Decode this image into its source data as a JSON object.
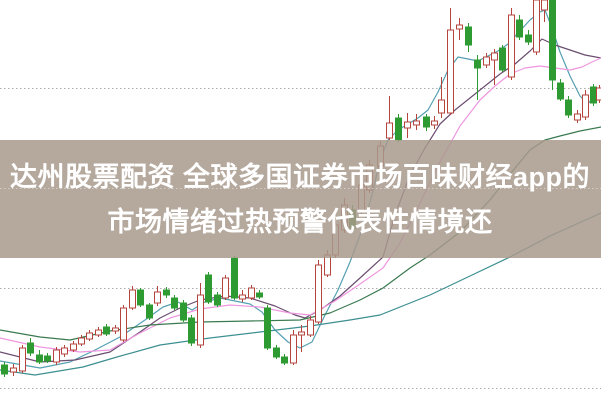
{
  "banner": {
    "line1": "达州股票配资 全球多国证券市场百味财经app的",
    "line2": "市场情绪过热预警代表性情境还",
    "bg_color": "#a8998c",
    "bg_opacity": 0.85,
    "text_color": "#ffffff"
  },
  "chart_data": {
    "type": "candlestick",
    "title": "",
    "xlabel": "",
    "ylabel": "",
    "axis_labels_visible": false,
    "y_axis_note": "no numeric axis labels visible; values recorded in screenshot pixel coordinates, smaller y = higher price",
    "background": "#ffffff",
    "grid": {
      "style": "dotted",
      "color": "#ababab",
      "y_positions": [
        88,
        188,
        288,
        388
      ]
    },
    "colors": {
      "up": "#b5443c",
      "up_fill": "#ffffff",
      "down": "#2e9b32"
    },
    "candles": [
      [
        4,
        365,
        374,
        362,
        377,
        "g"
      ],
      [
        13,
        368,
        372,
        364,
        376,
        "r"
      ],
      [
        22,
        348,
        371,
        345,
        373,
        "r"
      ],
      [
        30,
        343,
        353,
        338,
        356,
        "g"
      ],
      [
        39,
        355,
        362,
        350,
        364,
        "g"
      ],
      [
        47,
        356,
        361,
        353,
        363,
        "g"
      ],
      [
        56,
        350,
        362,
        347,
        365,
        "r"
      ],
      [
        64,
        348,
        354,
        345,
        357,
        "r"
      ],
      [
        73,
        344,
        350,
        341,
        352,
        "r"
      ],
      [
        81,
        338,
        344,
        335,
        346,
        "r"
      ],
      [
        89,
        333,
        339,
        330,
        341,
        "r"
      ],
      [
        98,
        330,
        335,
        327,
        337,
        "r"
      ],
      [
        106,
        327,
        334,
        324,
        336,
        "g"
      ],
      [
        115,
        328,
        331,
        325,
        334,
        "r"
      ],
      [
        123,
        308,
        340,
        305,
        342,
        "r"
      ],
      [
        132,
        290,
        308,
        286,
        310,
        "r"
      ],
      [
        140,
        290,
        305,
        288,
        307,
        "g"
      ],
      [
        149,
        305,
        318,
        303,
        320,
        "g"
      ],
      [
        157,
        292,
        303,
        286,
        306,
        "r"
      ],
      [
        166,
        290,
        295,
        287,
        298,
        "g"
      ],
      [
        174,
        298,
        308,
        295,
        310,
        "g"
      ],
      [
        183,
        303,
        320,
        300,
        322,
        "g"
      ],
      [
        191,
        318,
        343,
        315,
        346,
        "g"
      ],
      [
        200,
        295,
        345,
        283,
        348,
        "r"
      ],
      [
        208,
        275,
        302,
        272,
        304,
        "g"
      ],
      [
        217,
        295,
        305,
        292,
        307,
        "g"
      ],
      [
        225,
        278,
        298,
        275,
        300,
        "r"
      ],
      [
        234,
        258,
        298,
        256,
        300,
        "g"
      ],
      [
        242,
        295,
        299,
        290,
        302,
        "r"
      ],
      [
        251,
        288,
        298,
        285,
        300,
        "r"
      ],
      [
        259,
        293,
        297,
        290,
        299,
        "g"
      ],
      [
        267,
        308,
        348,
        305,
        350,
        "g"
      ],
      [
        276,
        348,
        357,
        345,
        359,
        "g"
      ],
      [
        284,
        357,
        363,
        354,
        365,
        "g"
      ],
      [
        293,
        335,
        363,
        330,
        365,
        "r"
      ],
      [
        301,
        332,
        335,
        325,
        352,
        "r"
      ],
      [
        310,
        320,
        335,
        316,
        337,
        "r"
      ],
      [
        318,
        265,
        322,
        260,
        324,
        "r"
      ],
      [
        327,
        255,
        275,
        250,
        277,
        "r"
      ],
      [
        335,
        225,
        255,
        218,
        258,
        "r"
      ],
      [
        344,
        205,
        230,
        198,
        233,
        "r"
      ],
      [
        352,
        210,
        228,
        205,
        231,
        "g"
      ],
      [
        361,
        185,
        212,
        180,
        215,
        "r"
      ],
      [
        369,
        165,
        190,
        160,
        193,
        "r"
      ],
      [
        380,
        146,
        166,
        141,
        169,
        "r"
      ],
      [
        389,
        123,
        138,
        96,
        140,
        "r"
      ],
      [
        398,
        118,
        140,
        114,
        142,
        "g"
      ],
      [
        407,
        122,
        128,
        113,
        138,
        "r"
      ],
      [
        416,
        121,
        125,
        114,
        130,
        "r"
      ],
      [
        426,
        117,
        127,
        114,
        131,
        "g"
      ],
      [
        434,
        121,
        125,
        116,
        129,
        "r"
      ],
      [
        441,
        100,
        113,
        77,
        118,
        "r"
      ],
      [
        450,
        30,
        113,
        8,
        115,
        "r"
      ],
      [
        459,
        25,
        29,
        18,
        40,
        "r"
      ],
      [
        468,
        27,
        45,
        23,
        52,
        "g"
      ],
      [
        477,
        60,
        68,
        55,
        100,
        "g"
      ],
      [
        486,
        57,
        65,
        53,
        68,
        "r"
      ],
      [
        494,
        53,
        60,
        49,
        85,
        "r"
      ],
      [
        502,
        48,
        70,
        45,
        72,
        "g"
      ],
      [
        511,
        15,
        77,
        8,
        80,
        "r"
      ],
      [
        519,
        20,
        37,
        15,
        40,
        "g"
      ],
      [
        528,
        35,
        42,
        30,
        45,
        "g"
      ],
      [
        536,
        0,
        52,
        0,
        55,
        "r"
      ],
      [
        544,
        0,
        10,
        0,
        22,
        "r"
      ],
      [
        552,
        0,
        80,
        0,
        90,
        "g"
      ],
      [
        560,
        83,
        99,
        79,
        101,
        "g"
      ],
      [
        568,
        100,
        115,
        96,
        118,
        "g"
      ],
      [
        577,
        114,
        120,
        110,
        123,
        "r"
      ],
      [
        585,
        95,
        117,
        90,
        120,
        "r"
      ],
      [
        593,
        87,
        103,
        84,
        106,
        "g"
      ],
      [
        599,
        88,
        100,
        85,
        103,
        "r"
      ]
    ],
    "ma_lines": [
      {
        "name": "ma-fast-teal",
        "color": "#55a0b2",
        "points": [
          [
            0,
            361
          ],
          [
            40,
            368
          ],
          [
            70,
            362
          ],
          [
            95,
            350
          ],
          [
            120,
            337
          ],
          [
            145,
            320
          ],
          [
            163,
            307
          ],
          [
            178,
            302
          ],
          [
            192,
            310
          ],
          [
            205,
            302
          ],
          [
            220,
            298
          ],
          [
            235,
            301
          ],
          [
            250,
            304
          ],
          [
            262,
            312
          ],
          [
            275,
            330
          ],
          [
            288,
            342
          ],
          [
            300,
            348
          ],
          [
            312,
            342
          ],
          [
            325,
            315
          ],
          [
            338,
            290
          ],
          [
            350,
            262
          ],
          [
            362,
            230
          ],
          [
            372,
            195
          ],
          [
            380,
            160
          ],
          [
            388,
            140
          ],
          [
            398,
            130
          ],
          [
            408,
            124
          ],
          [
            418,
            118
          ],
          [
            428,
            110
          ],
          [
            438,
            92
          ],
          [
            448,
            70
          ],
          [
            458,
            57
          ],
          [
            468,
            59
          ],
          [
            478,
            61
          ],
          [
            488,
            56
          ],
          [
            498,
            51
          ],
          [
            508,
            44
          ],
          [
            518,
            33
          ],
          [
            530,
            20
          ],
          [
            540,
            12
          ],
          [
            545,
            10
          ],
          [
            552,
            28
          ],
          [
            560,
            52
          ],
          [
            570,
            76
          ],
          [
            580,
            96
          ],
          [
            588,
            104
          ],
          [
            594,
            96
          ],
          [
            601,
            90
          ]
        ]
      },
      {
        "name": "ma-purple",
        "color": "#6b4d70",
        "points": [
          [
            0,
            352
          ],
          [
            40,
            362
          ],
          [
            75,
            360
          ],
          [
            110,
            352
          ],
          [
            140,
            332
          ],
          [
            160,
            318
          ],
          [
            180,
            308
          ],
          [
            200,
            300
          ],
          [
            225,
            296
          ],
          [
            250,
            298
          ],
          [
            275,
            306
          ],
          [
            295,
            315
          ],
          [
            305,
            318
          ],
          [
            320,
            310
          ],
          [
            340,
            296
          ],
          [
            360,
            278
          ],
          [
            383,
            257
          ],
          [
            395,
            215
          ],
          [
            410,
            175
          ],
          [
            425,
            148
          ],
          [
            440,
            124
          ],
          [
            455,
            110
          ],
          [
            470,
            98
          ],
          [
            485,
            86
          ],
          [
            500,
            74
          ],
          [
            515,
            64
          ],
          [
            530,
            51
          ],
          [
            542,
            39
          ],
          [
            555,
            45
          ],
          [
            570,
            50
          ],
          [
            585,
            55
          ],
          [
            601,
            58
          ]
        ]
      },
      {
        "name": "ma-pink",
        "color": "#ee97e0",
        "points": [
          [
            0,
            338
          ],
          [
            40,
            347
          ],
          [
            80,
            352
          ],
          [
            110,
            350
          ],
          [
            140,
            333
          ],
          [
            170,
            318
          ],
          [
            200,
            309
          ],
          [
            230,
            305
          ],
          [
            260,
            307
          ],
          [
            290,
            313
          ],
          [
            310,
            315
          ],
          [
            335,
            301
          ],
          [
            360,
            284
          ],
          [
            383,
            268
          ],
          [
            400,
            243
          ],
          [
            420,
            203
          ],
          [
            440,
            162
          ],
          [
            460,
            126
          ],
          [
            480,
            100
          ],
          [
            495,
            86
          ],
          [
            510,
            74
          ],
          [
            525,
            68
          ],
          [
            540,
            66
          ],
          [
            555,
            68
          ],
          [
            570,
            70
          ],
          [
            582,
            67
          ],
          [
            592,
            62
          ],
          [
            601,
            58
          ]
        ]
      },
      {
        "name": "ma-green-slow",
        "color": "#3a7a50",
        "points": [
          [
            0,
            330
          ],
          [
            40,
            337
          ],
          [
            70,
            340
          ],
          [
            110,
            331
          ],
          [
            150,
            325
          ],
          [
            200,
            322
          ],
          [
            250,
            321
          ],
          [
            300,
            320
          ],
          [
            330,
            313
          ],
          [
            360,
            300
          ],
          [
            383,
            288
          ],
          [
            410,
            268
          ],
          [
            430,
            255
          ],
          [
            460,
            232
          ],
          [
            490,
            200
          ],
          [
            515,
            168
          ],
          [
            530,
            150
          ],
          [
            545,
            140
          ],
          [
            560,
            136
          ],
          [
            580,
            131
          ],
          [
            601,
            127
          ]
        ]
      },
      {
        "name": "ma-slow-teal",
        "color": "#3d8f91",
        "points": [
          [
            0,
            370
          ],
          [
            35,
            375
          ],
          [
            83,
            367
          ],
          [
            117,
            357
          ],
          [
            160,
            345
          ],
          [
            210,
            338
          ],
          [
            260,
            332
          ],
          [
            310,
            326
          ],
          [
            350,
            320
          ],
          [
            380,
            315
          ],
          [
            430,
            295
          ],
          [
            470,
            276
          ],
          [
            510,
            257
          ],
          [
            550,
            236
          ],
          [
            601,
            213
          ]
        ]
      }
    ]
  }
}
